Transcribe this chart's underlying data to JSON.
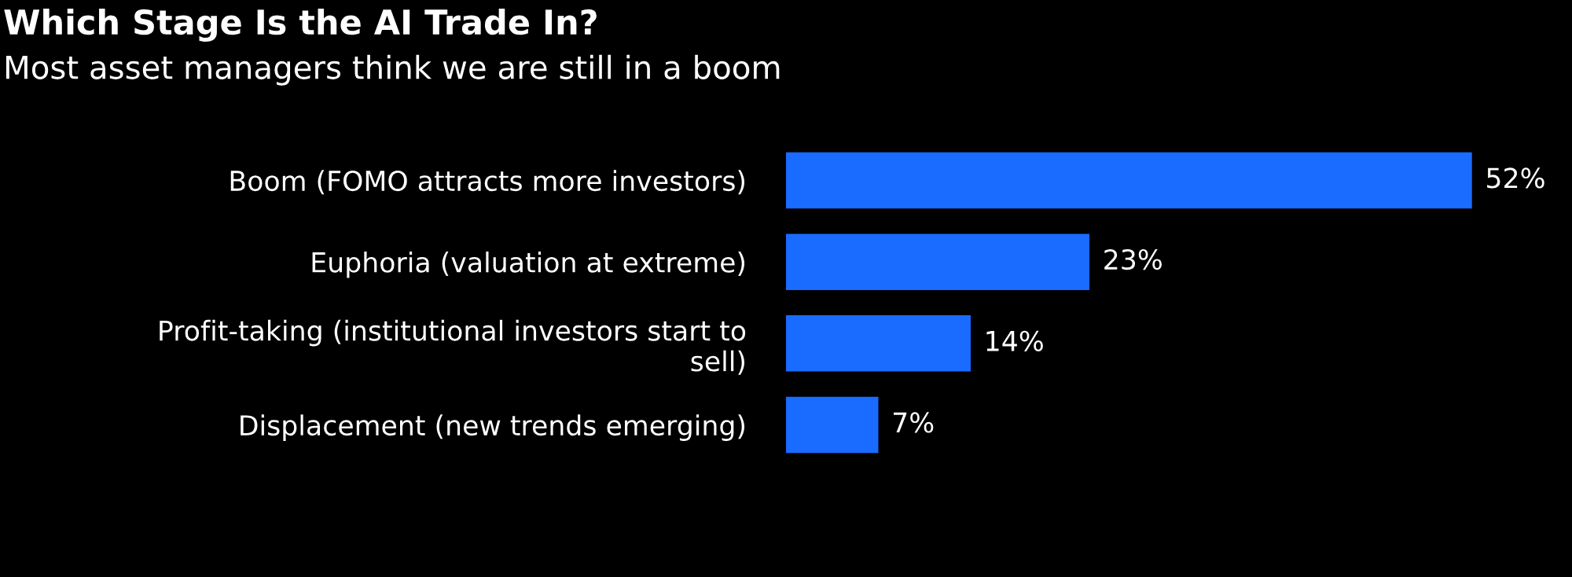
{
  "chart_data": {
    "type": "bar",
    "orientation": "horizontal",
    "title": "Which Stage Is the AI Trade In?",
    "subtitle": "Most asset managers think we are still in a boom",
    "categories": [
      "Boom (FOMO attracts more investors)",
      "Euphoria (valuation at extreme)",
      "Profit-taking (institutional investors start to\nsell)",
      "Displacement (new trends emerging)"
    ],
    "values": [
      52,
      23,
      14,
      7
    ],
    "value_labels": [
      "52%",
      "23%",
      "14%",
      "7%"
    ],
    "color": "#1a6bff",
    "grid": false,
    "legend": false
  }
}
